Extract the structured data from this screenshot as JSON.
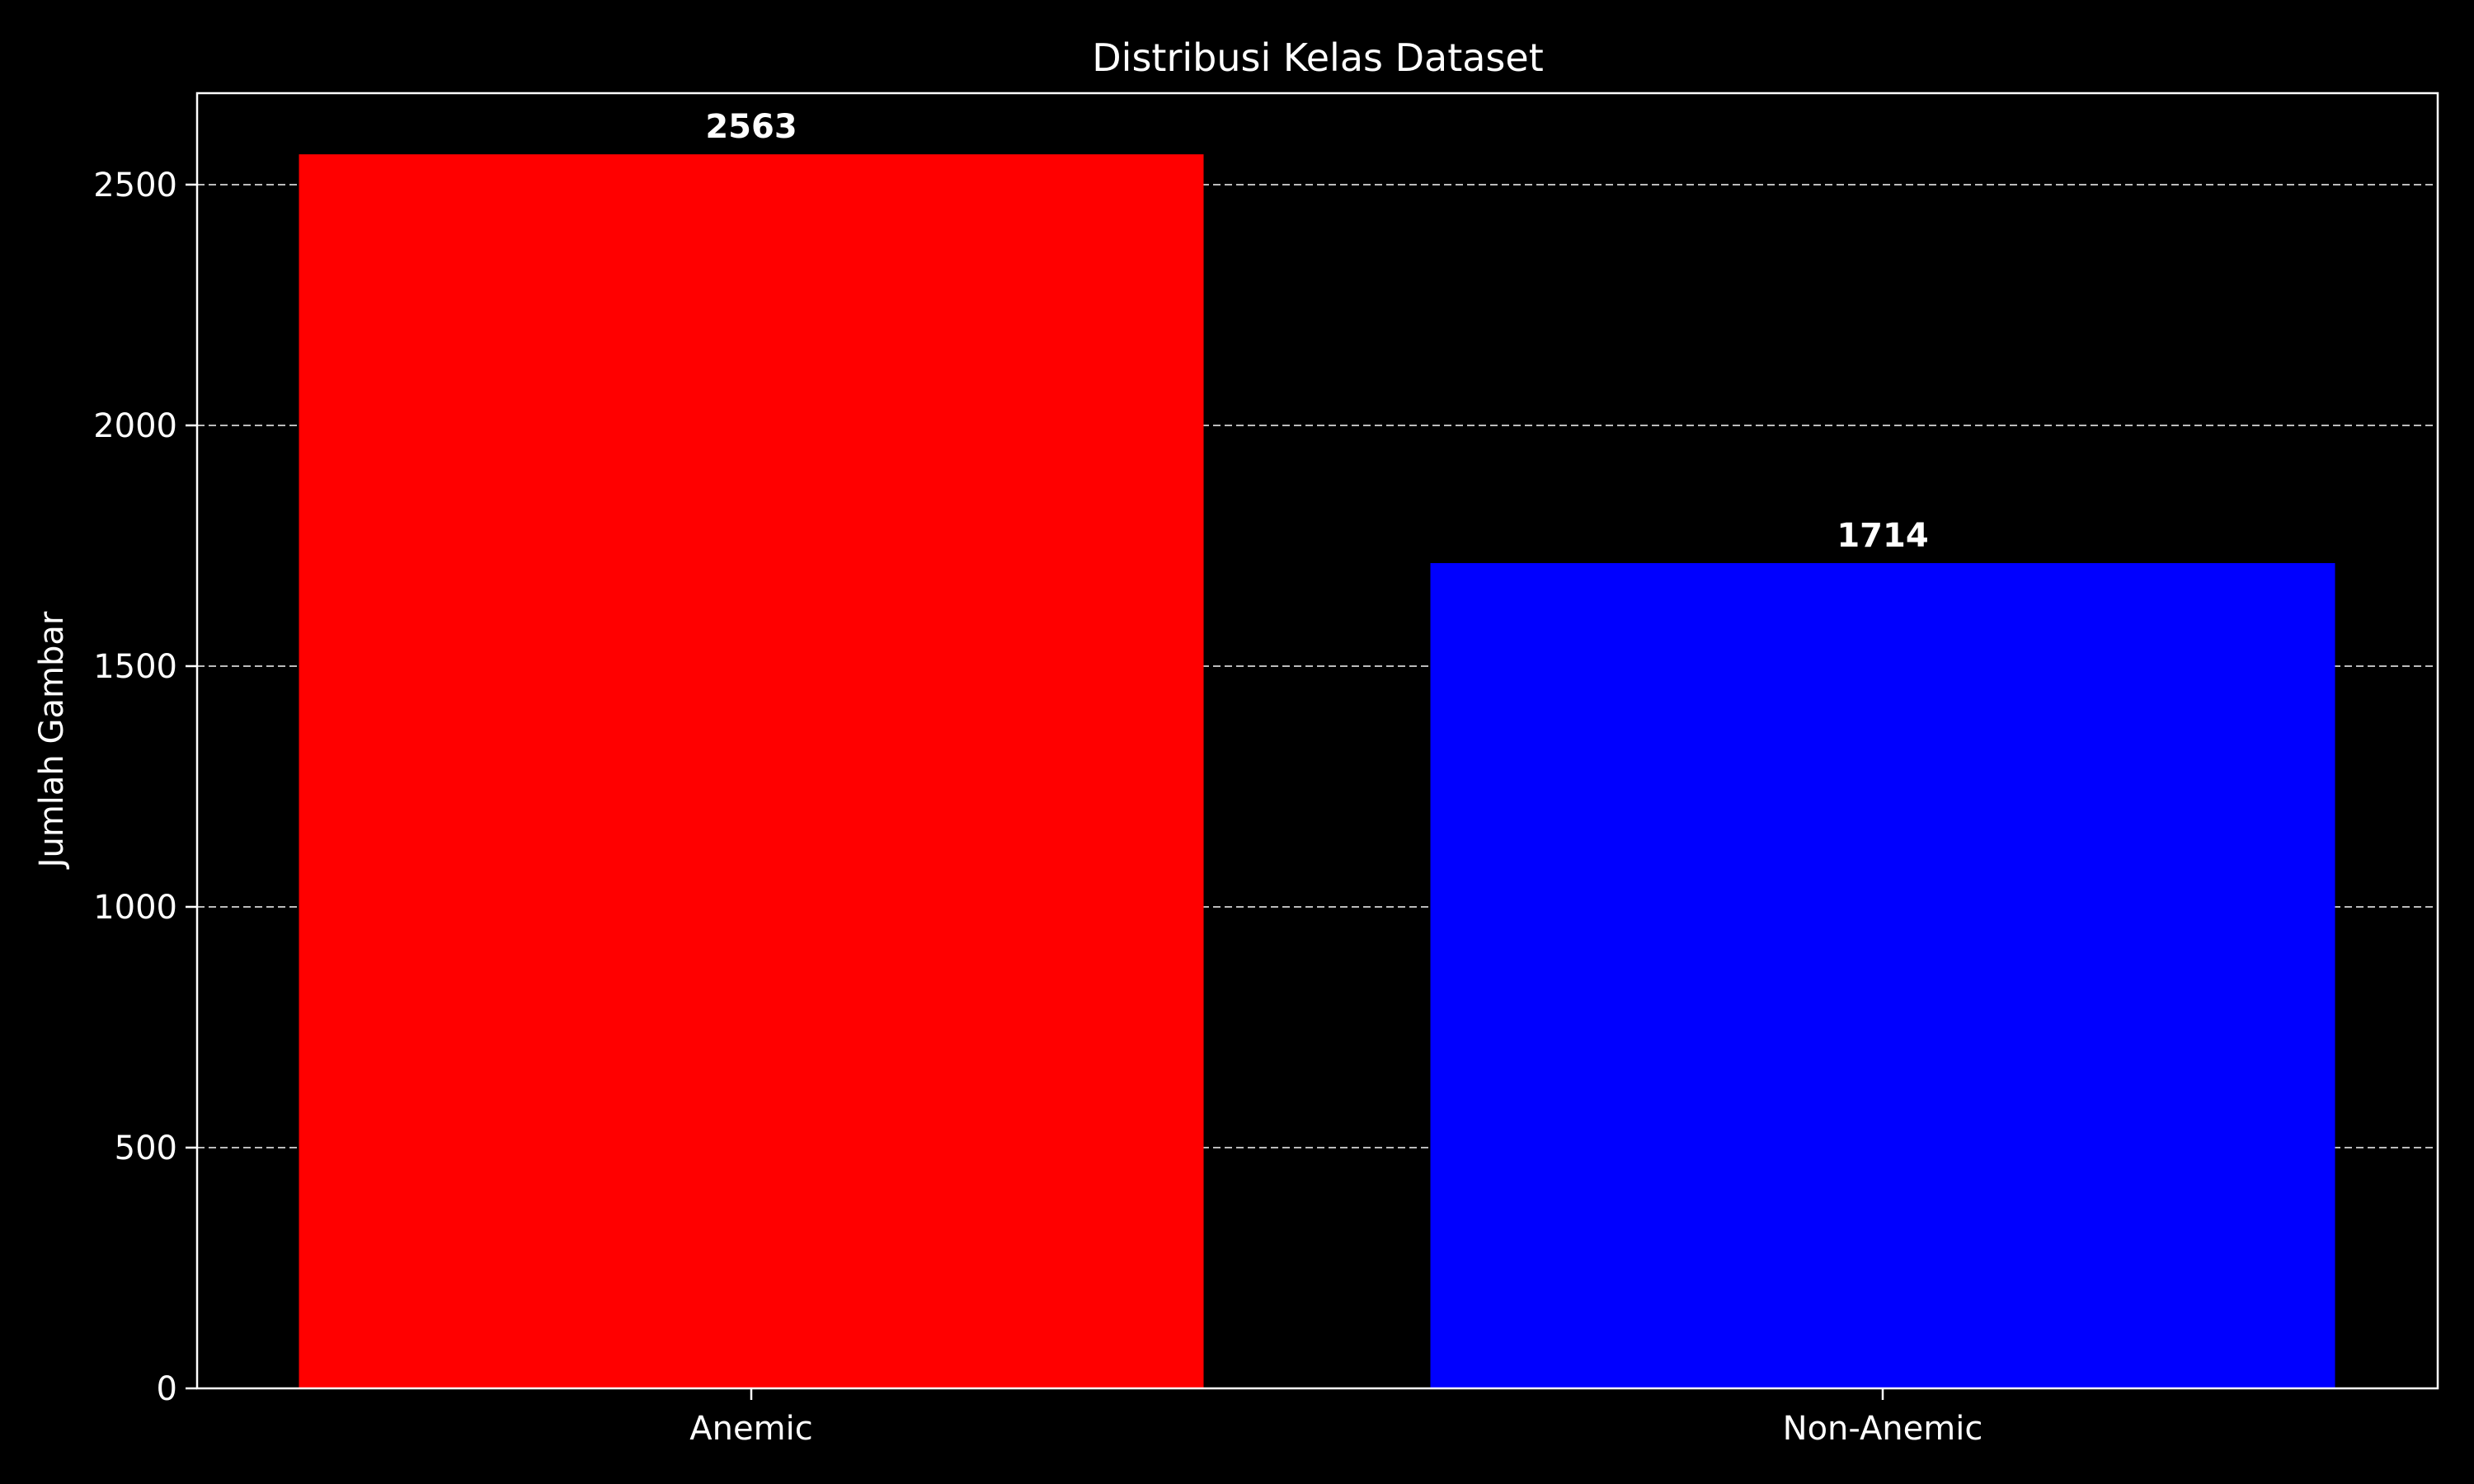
{
  "chart_data": {
    "type": "bar",
    "title": "Distribusi Kelas Dataset",
    "xlabel": "",
    "ylabel": "Jumlah Gambar",
    "categories": [
      "Anemic",
      "Non-Anemic"
    ],
    "values": [
      2563,
      1714
    ],
    "data_labels": [
      "2563",
      "1714"
    ],
    "bar_colors": [
      "#ff0000",
      "#0000ff"
    ],
    "ylim": [
      0,
      2690
    ],
    "yticks": [
      0,
      500,
      1000,
      1500,
      2000,
      2500
    ],
    "ytick_labels": [
      "0",
      "500",
      "1000",
      "1500",
      "2000",
      "2500"
    ],
    "grid": {
      "axis": "y",
      "style": "dashed",
      "color": "#bbbbbb"
    },
    "background": "#000000",
    "axes_color": "#ffffff",
    "text_color": "#ffffff"
  }
}
